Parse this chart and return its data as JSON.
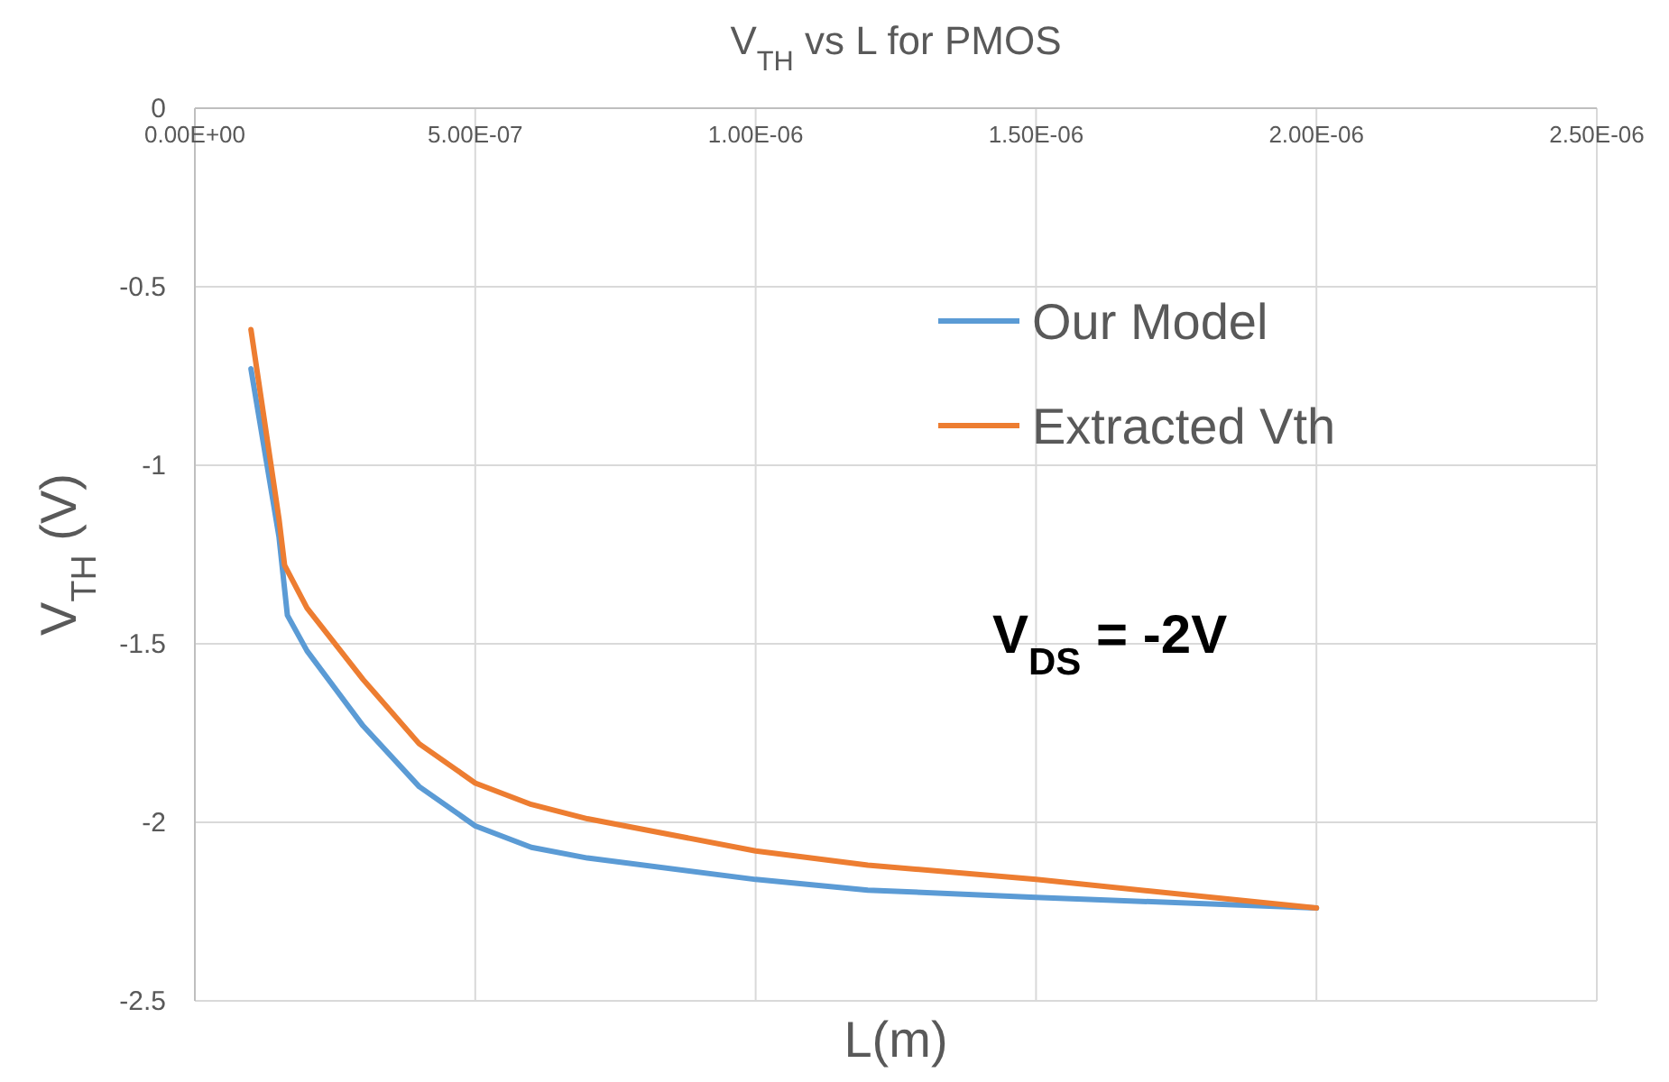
{
  "chart_data": {
    "type": "line",
    "title": "V$_{TH}$ vs L for PMOS",
    "xlabel": "L(m)",
    "ylabel": "V$_{TH}$ (V)",
    "annotations": [
      "V$_{DS}$ = -2V"
    ],
    "xlim": [
      0,
      2.5e-06
    ],
    "xticks": [
      {
        "value": 0,
        "label": "0.00E+00"
      },
      {
        "value": 5e-07,
        "label": "5.00E-07"
      },
      {
        "value": 1e-06,
        "label": "1.00E-06"
      },
      {
        "value": 1.5e-06,
        "label": "1.50E-06"
      },
      {
        "value": 2e-06,
        "label": "2.00E-06"
      },
      {
        "value": 2.5e-06,
        "label": "2.50E-06"
      }
    ],
    "ylim": [
      -2.5,
      0
    ],
    "yticks": [
      0,
      -0.5,
      -1,
      -1.5,
      -2,
      -2.5
    ],
    "grid": true,
    "legend": "top right",
    "line_style": "solid",
    "marker": "none",
    "series": [
      {
        "name": "Our Model",
        "color": "#5b9bd5",
        "x": [
          1e-07,
          1.5e-07,
          1.65e-07,
          2e-07,
          3e-07,
          4e-07,
          5e-07,
          6e-07,
          7e-07,
          1e-06,
          1.2e-06,
          1.5e-06,
          2e-06
        ],
        "values": [
          -0.73,
          -1.2,
          -1.42,
          -1.52,
          -1.73,
          -1.9,
          -2.01,
          -2.07,
          -2.1,
          -2.16,
          -2.19,
          -2.21,
          -2.24
        ]
      },
      {
        "name": "Extracted Vth",
        "color": "#ed7d31",
        "x": [
          1e-07,
          1.5e-07,
          1.6e-07,
          2e-07,
          3e-07,
          4e-07,
          5e-07,
          6e-07,
          7e-07,
          1e-06,
          1.2e-06,
          1.5e-06,
          2e-06
        ],
        "values": [
          -0.62,
          -1.15,
          -1.28,
          -1.4,
          -1.6,
          -1.78,
          -1.89,
          -1.95,
          -1.99,
          -2.08,
          -2.12,
          -2.16,
          -2.24
        ]
      }
    ]
  }
}
